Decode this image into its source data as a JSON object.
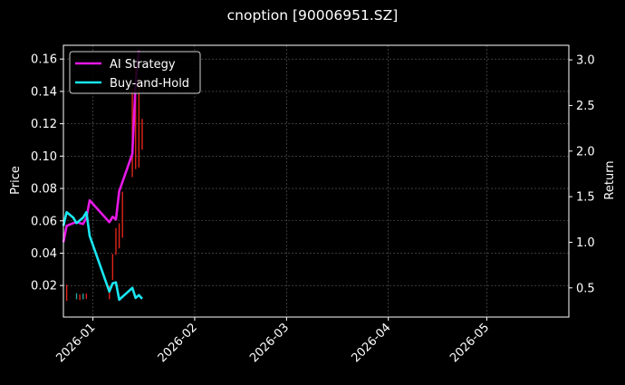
{
  "chart_data": {
    "type": "line",
    "title": "cnoption [90006951.SZ]",
    "xlabel": "",
    "ylabel": "Price",
    "y2label": "Return",
    "x_ticks": [
      "2026-01",
      "2026-02",
      "2026-03",
      "2026-04",
      "2026-05"
    ],
    "x_range": [
      "2025-12-23",
      "2026-05-26"
    ],
    "ylim": [
      0.0005,
      0.1685
    ],
    "y_ticks": [
      0.02,
      0.04,
      0.06,
      0.08,
      0.1,
      0.12,
      0.14,
      0.16
    ],
    "y_tick_labels": [
      "0.02",
      "0.04",
      "0.06",
      "0.08",
      "0.10",
      "0.12",
      "0.14",
      "0.16"
    ],
    "y2lim": [
      0.18,
      3.16
    ],
    "y2_ticks": [
      0.5,
      1.0,
      1.5,
      2.0,
      2.5,
      3.0
    ],
    "y2_tick_labels": [
      "0.5",
      "1.0",
      "1.5",
      "2.0",
      "2.5",
      "3.0"
    ],
    "grid": true,
    "legend_position": "top-left",
    "series": [
      {
        "name": "AI Strategy",
        "color": "#e619e6",
        "axis": "right",
        "x": [
          "2025-12-23",
          "2025-12-24",
          "2025-12-26",
          "2025-12-27",
          "2025-12-29",
          "2025-12-30",
          "2025-12-31",
          "2026-01-06",
          "2026-01-07",
          "2026-01-08",
          "2026-01-09",
          "2026-01-13",
          "2026-01-14",
          "2026-01-15"
        ],
        "values": [
          1.0,
          1.18,
          1.21,
          1.22,
          1.2,
          1.27,
          1.46,
          1.22,
          1.28,
          1.25,
          1.56,
          1.97,
          2.74,
          3.1
        ]
      },
      {
        "name": "Buy-and-Hold",
        "color": "#19e6f0",
        "axis": "right",
        "x": [
          "2025-12-23",
          "2025-12-24",
          "2025-12-26",
          "2025-12-27",
          "2025-12-29",
          "2025-12-30",
          "2025-12-31",
          "2026-01-06",
          "2026-01-07",
          "2026-01-08",
          "2026-01-09",
          "2026-01-13",
          "2026-01-14",
          "2026-01-15",
          "2026-01-16"
        ],
        "values": [
          1.18,
          1.33,
          1.27,
          1.21,
          1.27,
          1.33,
          1.07,
          0.46,
          0.55,
          0.56,
          0.37,
          0.5,
          0.39,
          0.42,
          0.38
        ]
      }
    ],
    "candles": [
      {
        "date": "2025-12-24",
        "low": 0.0105,
        "high": 0.0205,
        "color": "#e0241a"
      },
      {
        "date": "2025-12-27",
        "low": 0.0115,
        "high": 0.0152,
        "color": "#26a69a"
      },
      {
        "date": "2025-12-28",
        "low": 0.011,
        "high": 0.0145,
        "color": "#e0241a"
      },
      {
        "date": "2025-12-29",
        "low": 0.0115,
        "high": 0.015,
        "color": "#26a69a"
      },
      {
        "date": "2025-12-30",
        "low": 0.0118,
        "high": 0.015,
        "color": "#e0241a"
      },
      {
        "date": "2026-01-06",
        "low": 0.0115,
        "high": 0.02,
        "color": "#e0241a"
      },
      {
        "date": "2026-01-07",
        "low": 0.0235,
        "high": 0.0395,
        "color": "#e0241a"
      },
      {
        "date": "2026-01-08",
        "low": 0.039,
        "high": 0.0555,
        "color": "#e0241a"
      },
      {
        "date": "2026-01-09",
        "low": 0.043,
        "high": 0.0585,
        "color": "#e0241a"
      },
      {
        "date": "2026-01-10",
        "low": 0.0495,
        "high": 0.078,
        "color": "#e0241a"
      },
      {
        "date": "2026-01-13",
        "low": 0.087,
        "high": 0.142,
        "color": "#e0241a"
      },
      {
        "date": "2026-01-14",
        "low": 0.092,
        "high": 0.156,
        "color": "#e0241a"
      },
      {
        "date": "2026-01-15",
        "low": 0.093,
        "high": 0.148,
        "color": "#e0241a"
      },
      {
        "date": "2026-01-16",
        "low": 0.104,
        "high": 0.123,
        "color": "#e0241a"
      }
    ]
  }
}
